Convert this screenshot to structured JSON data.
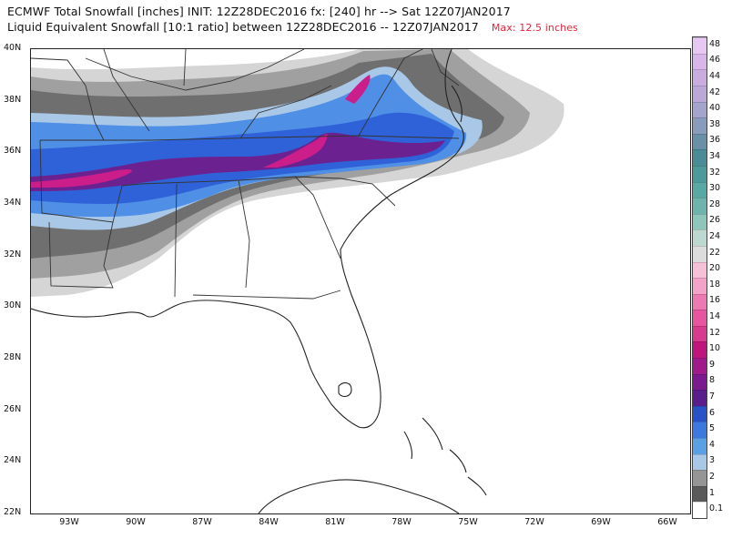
{
  "title_line1": "ECMWF Total Snowfall [inches] INIT: 12Z28DEC2016 fx: [240] hr --> Sat 12Z07JAN2017",
  "title_line2": "Liquid Equivalent Snowfall [10:1 ratio] between 12Z28DEC2016 -- 12Z07JAN2017",
  "max_label": "Max: 12.5 inches",
  "y_labels": [
    "40N",
    "38N",
    "36N",
    "34N",
    "32N",
    "30N",
    "28N",
    "26N",
    "24N",
    "22N"
  ],
  "x_labels": [
    "93W",
    "90W",
    "87W",
    "84W",
    "81W",
    "78W",
    "75W",
    "72W",
    "69W",
    "66W"
  ],
  "colorbar": {
    "labels": [
      "0.1",
      "1",
      "2",
      "3",
      "4",
      "5",
      "6",
      "7",
      "8",
      "9",
      "10",
      "12",
      "14",
      "16",
      "18",
      "20",
      "22",
      "24",
      "26",
      "28",
      "30",
      "32",
      "34",
      "36",
      "38",
      "40",
      "42",
      "44",
      "46",
      "48"
    ],
    "colors": [
      "#ffffff",
      "#5a5a5a",
      "#959595",
      "#a9c8e8",
      "#5aa0e4",
      "#3d78e0",
      "#2a52c8",
      "#5a1e8c",
      "#7a1a8e",
      "#a01a8c",
      "#c0157c",
      "#d83a8e",
      "#e6559e",
      "#ec79b2",
      "#f2a3c8",
      "#f6c0d6",
      "#dcdcdc",
      "#bcd8d0",
      "#8ec6bc",
      "#6cb4ac",
      "#58a8a4",
      "#4c9a9a",
      "#4a8c96",
      "#6a90a8",
      "#8a9cbc",
      "#a4a4cc",
      "#b9a8d8",
      "#c9ace0",
      "#d8b6ea",
      "#e6c8f2"
    ]
  },
  "colors": {
    "coast": "#222222",
    "border": "#333333",
    "snow_light": "#d5d5d5",
    "snow_mid": "#a0a0a0",
    "snow_dark": "#6f6f6f",
    "snow_blue_light": "#a9c8e8",
    "snow_blue": "#4f8fe6",
    "snow_blue_dark": "#2f62d8",
    "snow_purple": "#6b2290",
    "snow_magenta": "#cc1e8a"
  }
}
